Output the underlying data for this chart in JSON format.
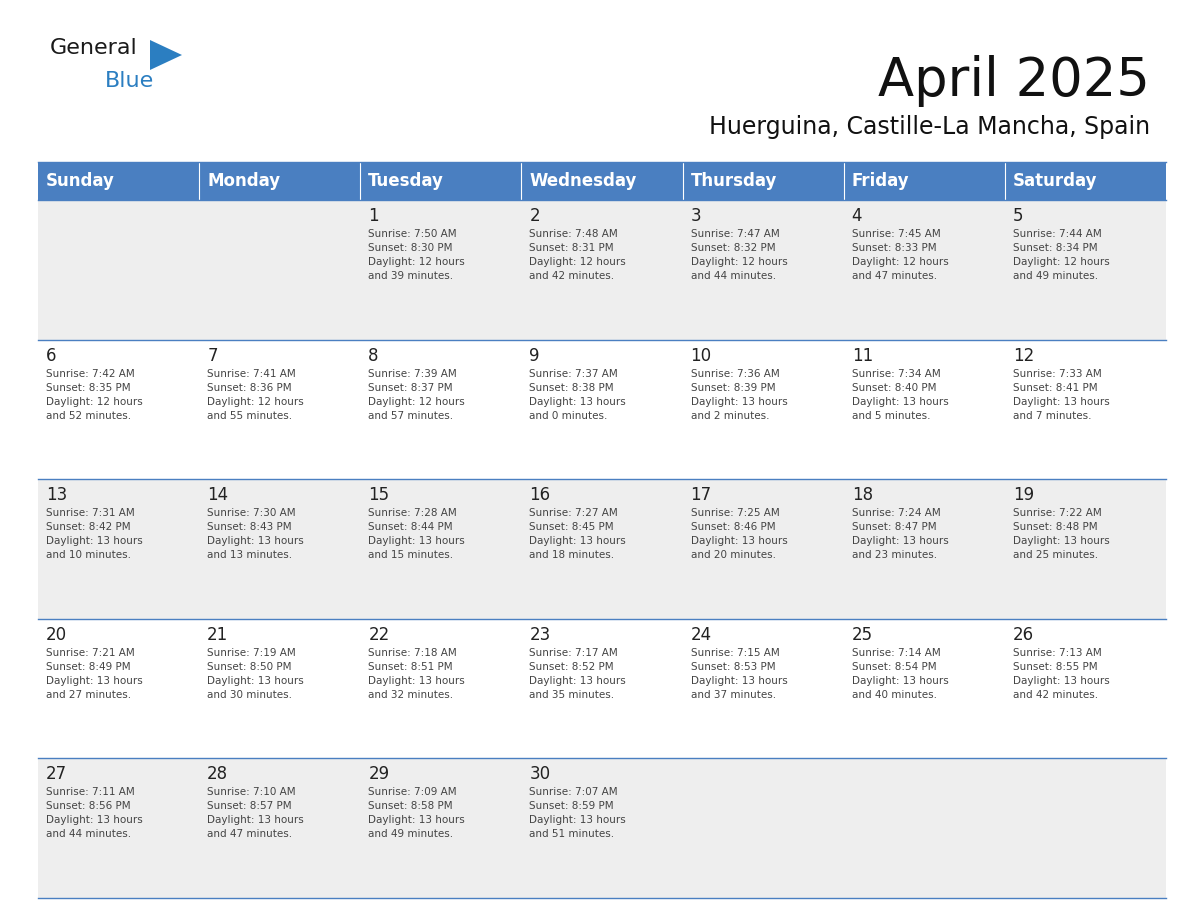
{
  "title": "April 2025",
  "subtitle": "Huerguina, Castille-La Mancha, Spain",
  "header_bg": "#4A7FC1",
  "header_text_color": "#FFFFFF",
  "header_font_size": 12,
  "days_of_week": [
    "Sunday",
    "Monday",
    "Tuesday",
    "Wednesday",
    "Thursday",
    "Friday",
    "Saturday"
  ],
  "title_font_size": 38,
  "subtitle_font_size": 17,
  "cell_text_color": "#444444",
  "cell_number_color": "#222222",
  "odd_row_bg": "#EEEEEE",
  "even_row_bg": "#FFFFFF",
  "line_color": "#4A7FC1",
  "weeks": [
    [
      {
        "day": "",
        "text": ""
      },
      {
        "day": "",
        "text": ""
      },
      {
        "day": "1",
        "text": "Sunrise: 7:50 AM\nSunset: 8:30 PM\nDaylight: 12 hours\nand 39 minutes."
      },
      {
        "day": "2",
        "text": "Sunrise: 7:48 AM\nSunset: 8:31 PM\nDaylight: 12 hours\nand 42 minutes."
      },
      {
        "day": "3",
        "text": "Sunrise: 7:47 AM\nSunset: 8:32 PM\nDaylight: 12 hours\nand 44 minutes."
      },
      {
        "day": "4",
        "text": "Sunrise: 7:45 AM\nSunset: 8:33 PM\nDaylight: 12 hours\nand 47 minutes."
      },
      {
        "day": "5",
        "text": "Sunrise: 7:44 AM\nSunset: 8:34 PM\nDaylight: 12 hours\nand 49 minutes."
      }
    ],
    [
      {
        "day": "6",
        "text": "Sunrise: 7:42 AM\nSunset: 8:35 PM\nDaylight: 12 hours\nand 52 minutes."
      },
      {
        "day": "7",
        "text": "Sunrise: 7:41 AM\nSunset: 8:36 PM\nDaylight: 12 hours\nand 55 minutes."
      },
      {
        "day": "8",
        "text": "Sunrise: 7:39 AM\nSunset: 8:37 PM\nDaylight: 12 hours\nand 57 minutes."
      },
      {
        "day": "9",
        "text": "Sunrise: 7:37 AM\nSunset: 8:38 PM\nDaylight: 13 hours\nand 0 minutes."
      },
      {
        "day": "10",
        "text": "Sunrise: 7:36 AM\nSunset: 8:39 PM\nDaylight: 13 hours\nand 2 minutes."
      },
      {
        "day": "11",
        "text": "Sunrise: 7:34 AM\nSunset: 8:40 PM\nDaylight: 13 hours\nand 5 minutes."
      },
      {
        "day": "12",
        "text": "Sunrise: 7:33 AM\nSunset: 8:41 PM\nDaylight: 13 hours\nand 7 minutes."
      }
    ],
    [
      {
        "day": "13",
        "text": "Sunrise: 7:31 AM\nSunset: 8:42 PM\nDaylight: 13 hours\nand 10 minutes."
      },
      {
        "day": "14",
        "text": "Sunrise: 7:30 AM\nSunset: 8:43 PM\nDaylight: 13 hours\nand 13 minutes."
      },
      {
        "day": "15",
        "text": "Sunrise: 7:28 AM\nSunset: 8:44 PM\nDaylight: 13 hours\nand 15 minutes."
      },
      {
        "day": "16",
        "text": "Sunrise: 7:27 AM\nSunset: 8:45 PM\nDaylight: 13 hours\nand 18 minutes."
      },
      {
        "day": "17",
        "text": "Sunrise: 7:25 AM\nSunset: 8:46 PM\nDaylight: 13 hours\nand 20 minutes."
      },
      {
        "day": "18",
        "text": "Sunrise: 7:24 AM\nSunset: 8:47 PM\nDaylight: 13 hours\nand 23 minutes."
      },
      {
        "day": "19",
        "text": "Sunrise: 7:22 AM\nSunset: 8:48 PM\nDaylight: 13 hours\nand 25 minutes."
      }
    ],
    [
      {
        "day": "20",
        "text": "Sunrise: 7:21 AM\nSunset: 8:49 PM\nDaylight: 13 hours\nand 27 minutes."
      },
      {
        "day": "21",
        "text": "Sunrise: 7:19 AM\nSunset: 8:50 PM\nDaylight: 13 hours\nand 30 minutes."
      },
      {
        "day": "22",
        "text": "Sunrise: 7:18 AM\nSunset: 8:51 PM\nDaylight: 13 hours\nand 32 minutes."
      },
      {
        "day": "23",
        "text": "Sunrise: 7:17 AM\nSunset: 8:52 PM\nDaylight: 13 hours\nand 35 minutes."
      },
      {
        "day": "24",
        "text": "Sunrise: 7:15 AM\nSunset: 8:53 PM\nDaylight: 13 hours\nand 37 minutes."
      },
      {
        "day": "25",
        "text": "Sunrise: 7:14 AM\nSunset: 8:54 PM\nDaylight: 13 hours\nand 40 minutes."
      },
      {
        "day": "26",
        "text": "Sunrise: 7:13 AM\nSunset: 8:55 PM\nDaylight: 13 hours\nand 42 minutes."
      }
    ],
    [
      {
        "day": "27",
        "text": "Sunrise: 7:11 AM\nSunset: 8:56 PM\nDaylight: 13 hours\nand 44 minutes."
      },
      {
        "day": "28",
        "text": "Sunrise: 7:10 AM\nSunset: 8:57 PM\nDaylight: 13 hours\nand 47 minutes."
      },
      {
        "day": "29",
        "text": "Sunrise: 7:09 AM\nSunset: 8:58 PM\nDaylight: 13 hours\nand 49 minutes."
      },
      {
        "day": "30",
        "text": "Sunrise: 7:07 AM\nSunset: 8:59 PM\nDaylight: 13 hours\nand 51 minutes."
      },
      {
        "day": "",
        "text": ""
      },
      {
        "day": "",
        "text": ""
      },
      {
        "day": "",
        "text": ""
      }
    ]
  ],
  "logo_general_color": "#1a1a1a",
  "logo_blue_color": "#2B7EC1",
  "logo_triangle_color": "#2B7EC1"
}
